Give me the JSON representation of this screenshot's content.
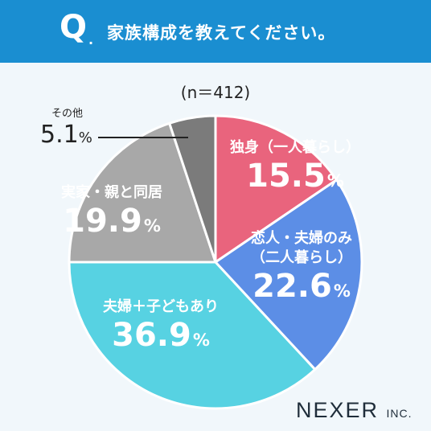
{
  "header": {
    "q_mark": "Q",
    "q_dot": ".",
    "question": "家族構成を教えてください。"
  },
  "n_label": "(n＝412)",
  "logo": {
    "main": "NEXER",
    "suffix": "INC."
  },
  "chart_data": {
    "type": "pie",
    "title": "家族構成を教えてください。",
    "n": 412,
    "slices": [
      {
        "label": "独身（一人暮らし）",
        "lines": [
          "独身（一人暮らし）"
        ],
        "value": 15.5,
        "color": "#e9647d"
      },
      {
        "label": "恋人・夫婦のみ（二人暮らし）",
        "lines": [
          "恋人・夫婦のみ",
          "（二人暮らし）"
        ],
        "value": 22.6,
        "color": "#5c8ee6"
      },
      {
        "label": "夫婦＋子どもあり",
        "lines": [
          "夫婦＋子どもあり"
        ],
        "value": 36.9,
        "color": "#57d2e2"
      },
      {
        "label": "実家・親と同居",
        "lines": [
          "実家・親と同居"
        ],
        "value": 19.9,
        "color": "#a8a8a8"
      },
      {
        "label": "その他",
        "lines": [
          "その他"
        ],
        "value": 5.1,
        "color": "#7b7b7b"
      }
    ],
    "unit": "%"
  }
}
